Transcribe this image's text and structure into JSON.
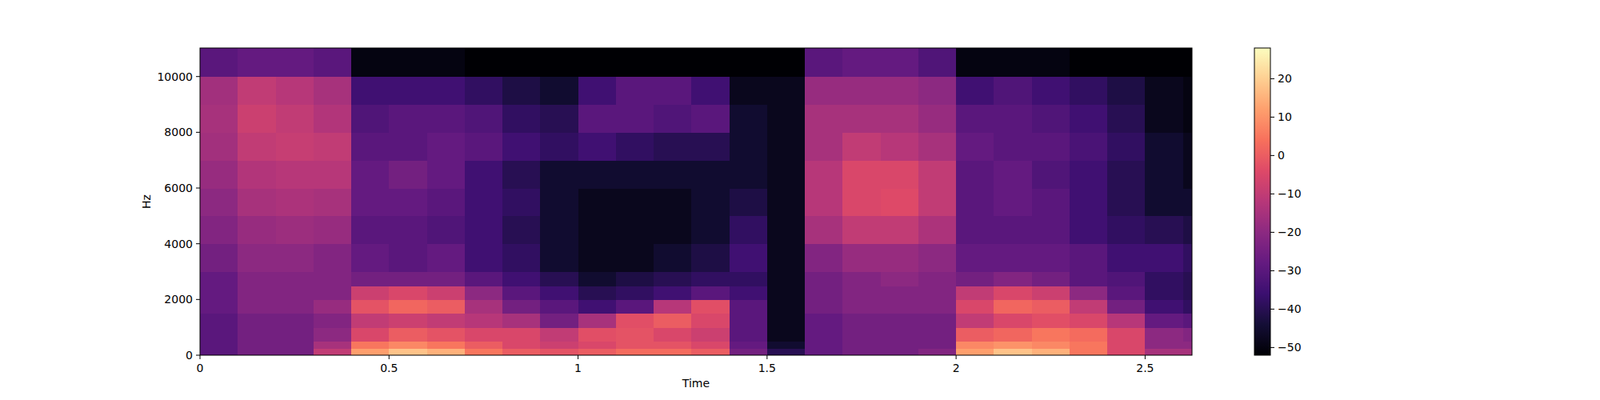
{
  "chart_data": {
    "type": "heatmap",
    "x_label": "Time",
    "y_label": "Hz",
    "xlim": [
      0,
      2.624
    ],
    "ylim": [
      0,
      11025
    ],
    "xticks": [
      0,
      0.5,
      1,
      1.5,
      2,
      2.5
    ],
    "yticks": [
      0,
      2000,
      4000,
      6000,
      8000,
      10000
    ],
    "x_edges": [
      0,
      0.1,
      0.2,
      0.3,
      0.4,
      0.5,
      0.6,
      0.7,
      0.8,
      0.9,
      1.0,
      1.1,
      1.2,
      1.3,
      1.4,
      1.5,
      1.6,
      1.7,
      1.8,
      1.9,
      2.0,
      2.1,
      2.2,
      2.3,
      2.4,
      2.5,
      2.6,
      2.624
    ],
    "y_edges": [
      0,
      250,
      500,
      1000,
      1500,
      2000,
      2500,
      3000,
      4000,
      5000,
      6000,
      7000,
      8000,
      9000,
      10000,
      11025
    ],
    "cells": [
      [
        -30,
        -30,
        -30,
        -30,
        -28,
        -28,
        -28,
        -25,
        -22,
        -20,
        -18,
        -16,
        -15,
        -16,
        -30
      ],
      [
        -25,
        -25,
        -25,
        -25,
        -22,
        -22,
        -22,
        -20,
        -18,
        -15,
        -13,
        -10,
        -8,
        -10,
        -28
      ],
      [
        -25,
        -25,
        -25,
        -25,
        -22,
        -22,
        -22,
        -20,
        -17,
        -14,
        -12,
        -9,
        -10,
        -12,
        -28
      ],
      [
        -10,
        -15,
        -20,
        -22,
        -18,
        -22,
        -22,
        -22,
        -18,
        -15,
        -12,
        -10,
        -13,
        -15,
        -30
      ],
      [
        12,
        5,
        -5,
        -10,
        -2,
        -8,
        -25,
        -28,
        -30,
        -28,
        -28,
        -30,
        -32,
        -35,
        -50
      ],
      [
        18,
        8,
        0,
        -8,
        2,
        -5,
        -25,
        -30,
        -30,
        -28,
        -25,
        -30,
        -30,
        -35,
        -50
      ],
      [
        15,
        5,
        -2,
        -10,
        0,
        -8,
        -25,
        -28,
        -32,
        -30,
        -28,
        -28,
        -30,
        -35,
        -50
      ],
      [
        5,
        0,
        -5,
        -12,
        -15,
        -20,
        -30,
        -35,
        -35,
        -35,
        -35,
        -30,
        -32,
        -38,
        -52
      ],
      [
        0,
        -5,
        -5,
        -15,
        -25,
        -30,
        -35,
        -38,
        -40,
        -38,
        -40,
        -35,
        -38,
        -42,
        -52
      ],
      [
        -2,
        -8,
        -10,
        -25,
        -30,
        -35,
        -40,
        -45,
        -45,
        -45,
        -45,
        -38,
        -40,
        -45,
        -52
      ],
      [
        0,
        -5,
        -3,
        -15,
        -35,
        -40,
        -45,
        -48,
        -48,
        -48,
        -45,
        -35,
        -30,
        -35,
        -52
      ],
      [
        3,
        -2,
        -2,
        -3,
        -30,
        -38,
        -42,
        -48,
        -48,
        -48,
        -45,
        -38,
        -30,
        -30,
        -52
      ],
      [
        3,
        -2,
        -5,
        0,
        -12,
        -35,
        -40,
        -45,
        -48,
        -48,
        -45,
        -40,
        -32,
        -30,
        -52
      ],
      [
        0,
        -5,
        -8,
        -5,
        -3,
        -30,
        -38,
        -42,
        -45,
        -45,
        -45,
        -40,
        -30,
        -35,
        -52
      ],
      [
        -25,
        -28,
        -30,
        -30,
        -30,
        -35,
        -38,
        -35,
        -38,
        -42,
        -45,
        -45,
        -45,
        -48,
        -52
      ],
      [
        -40,
        -45,
        -48,
        -48,
        -48,
        -48,
        -48,
        -48,
        -48,
        -48,
        -48,
        -48,
        -48,
        -48,
        -52
      ],
      [
        -28,
        -28,
        -28,
        -28,
        -25,
        -25,
        -25,
        -22,
        -15,
        -12,
        -12,
        -15,
        -15,
        -18,
        -30
      ],
      [
        -25,
        -25,
        -25,
        -25,
        -22,
        -22,
        -22,
        -18,
        -10,
        -5,
        -5,
        -10,
        -15,
        -18,
        -28
      ],
      [
        -25,
        -25,
        -25,
        -25,
        -22,
        -22,
        -20,
        -18,
        -10,
        -4,
        -5,
        -12,
        -15,
        -18,
        -28
      ],
      [
        -22,
        -25,
        -25,
        -25,
        -22,
        -22,
        -22,
        -20,
        -14,
        -10,
        -10,
        -15,
        -18,
        -20,
        -32
      ],
      [
        12,
        8,
        0,
        -10,
        -5,
        -10,
        -25,
        -28,
        -30,
        -30,
        -30,
        -28,
        -30,
        -35,
        -50
      ],
      [
        18,
        10,
        2,
        -5,
        2,
        -5,
        -22,
        -28,
        -30,
        -28,
        -28,
        -30,
        -30,
        -32,
        -50
      ],
      [
        15,
        8,
        5,
        -3,
        0,
        -8,
        -25,
        -28,
        -30,
        -30,
        -32,
        -30,
        -32,
        -35,
        -50
      ],
      [
        5,
        5,
        3,
        -5,
        -10,
        -20,
        -30,
        -30,
        -35,
        -35,
        -35,
        -33,
        -35,
        -38,
        -52
      ],
      [
        -5,
        -5,
        -5,
        -12,
        -25,
        -30,
        -32,
        -35,
        -38,
        -40,
        -40,
        -38,
        -40,
        -42,
        -52
      ],
      [
        -15,
        -20,
        -20,
        -28,
        -35,
        -38,
        -38,
        -35,
        -40,
        -45,
        -45,
        -45,
        -48,
        -48,
        -52
      ],
      [
        -15,
        -20,
        -22,
        -30,
        -38,
        -40,
        -40,
        -38,
        -42,
        -45,
        -48,
        -48,
        -50,
        -50,
        -52
      ]
    ],
    "colorbar_range": [
      -52,
      28
    ],
    "colorbar_ticks": [
      {
        "value": -50,
        "label": "−50"
      },
      {
        "value": -40,
        "label": "−40"
      },
      {
        "value": -30,
        "label": "−30"
      },
      {
        "value": -20,
        "label": "−20"
      },
      {
        "value": -10,
        "label": "−10"
      },
      0,
      10,
      20
    ]
  }
}
